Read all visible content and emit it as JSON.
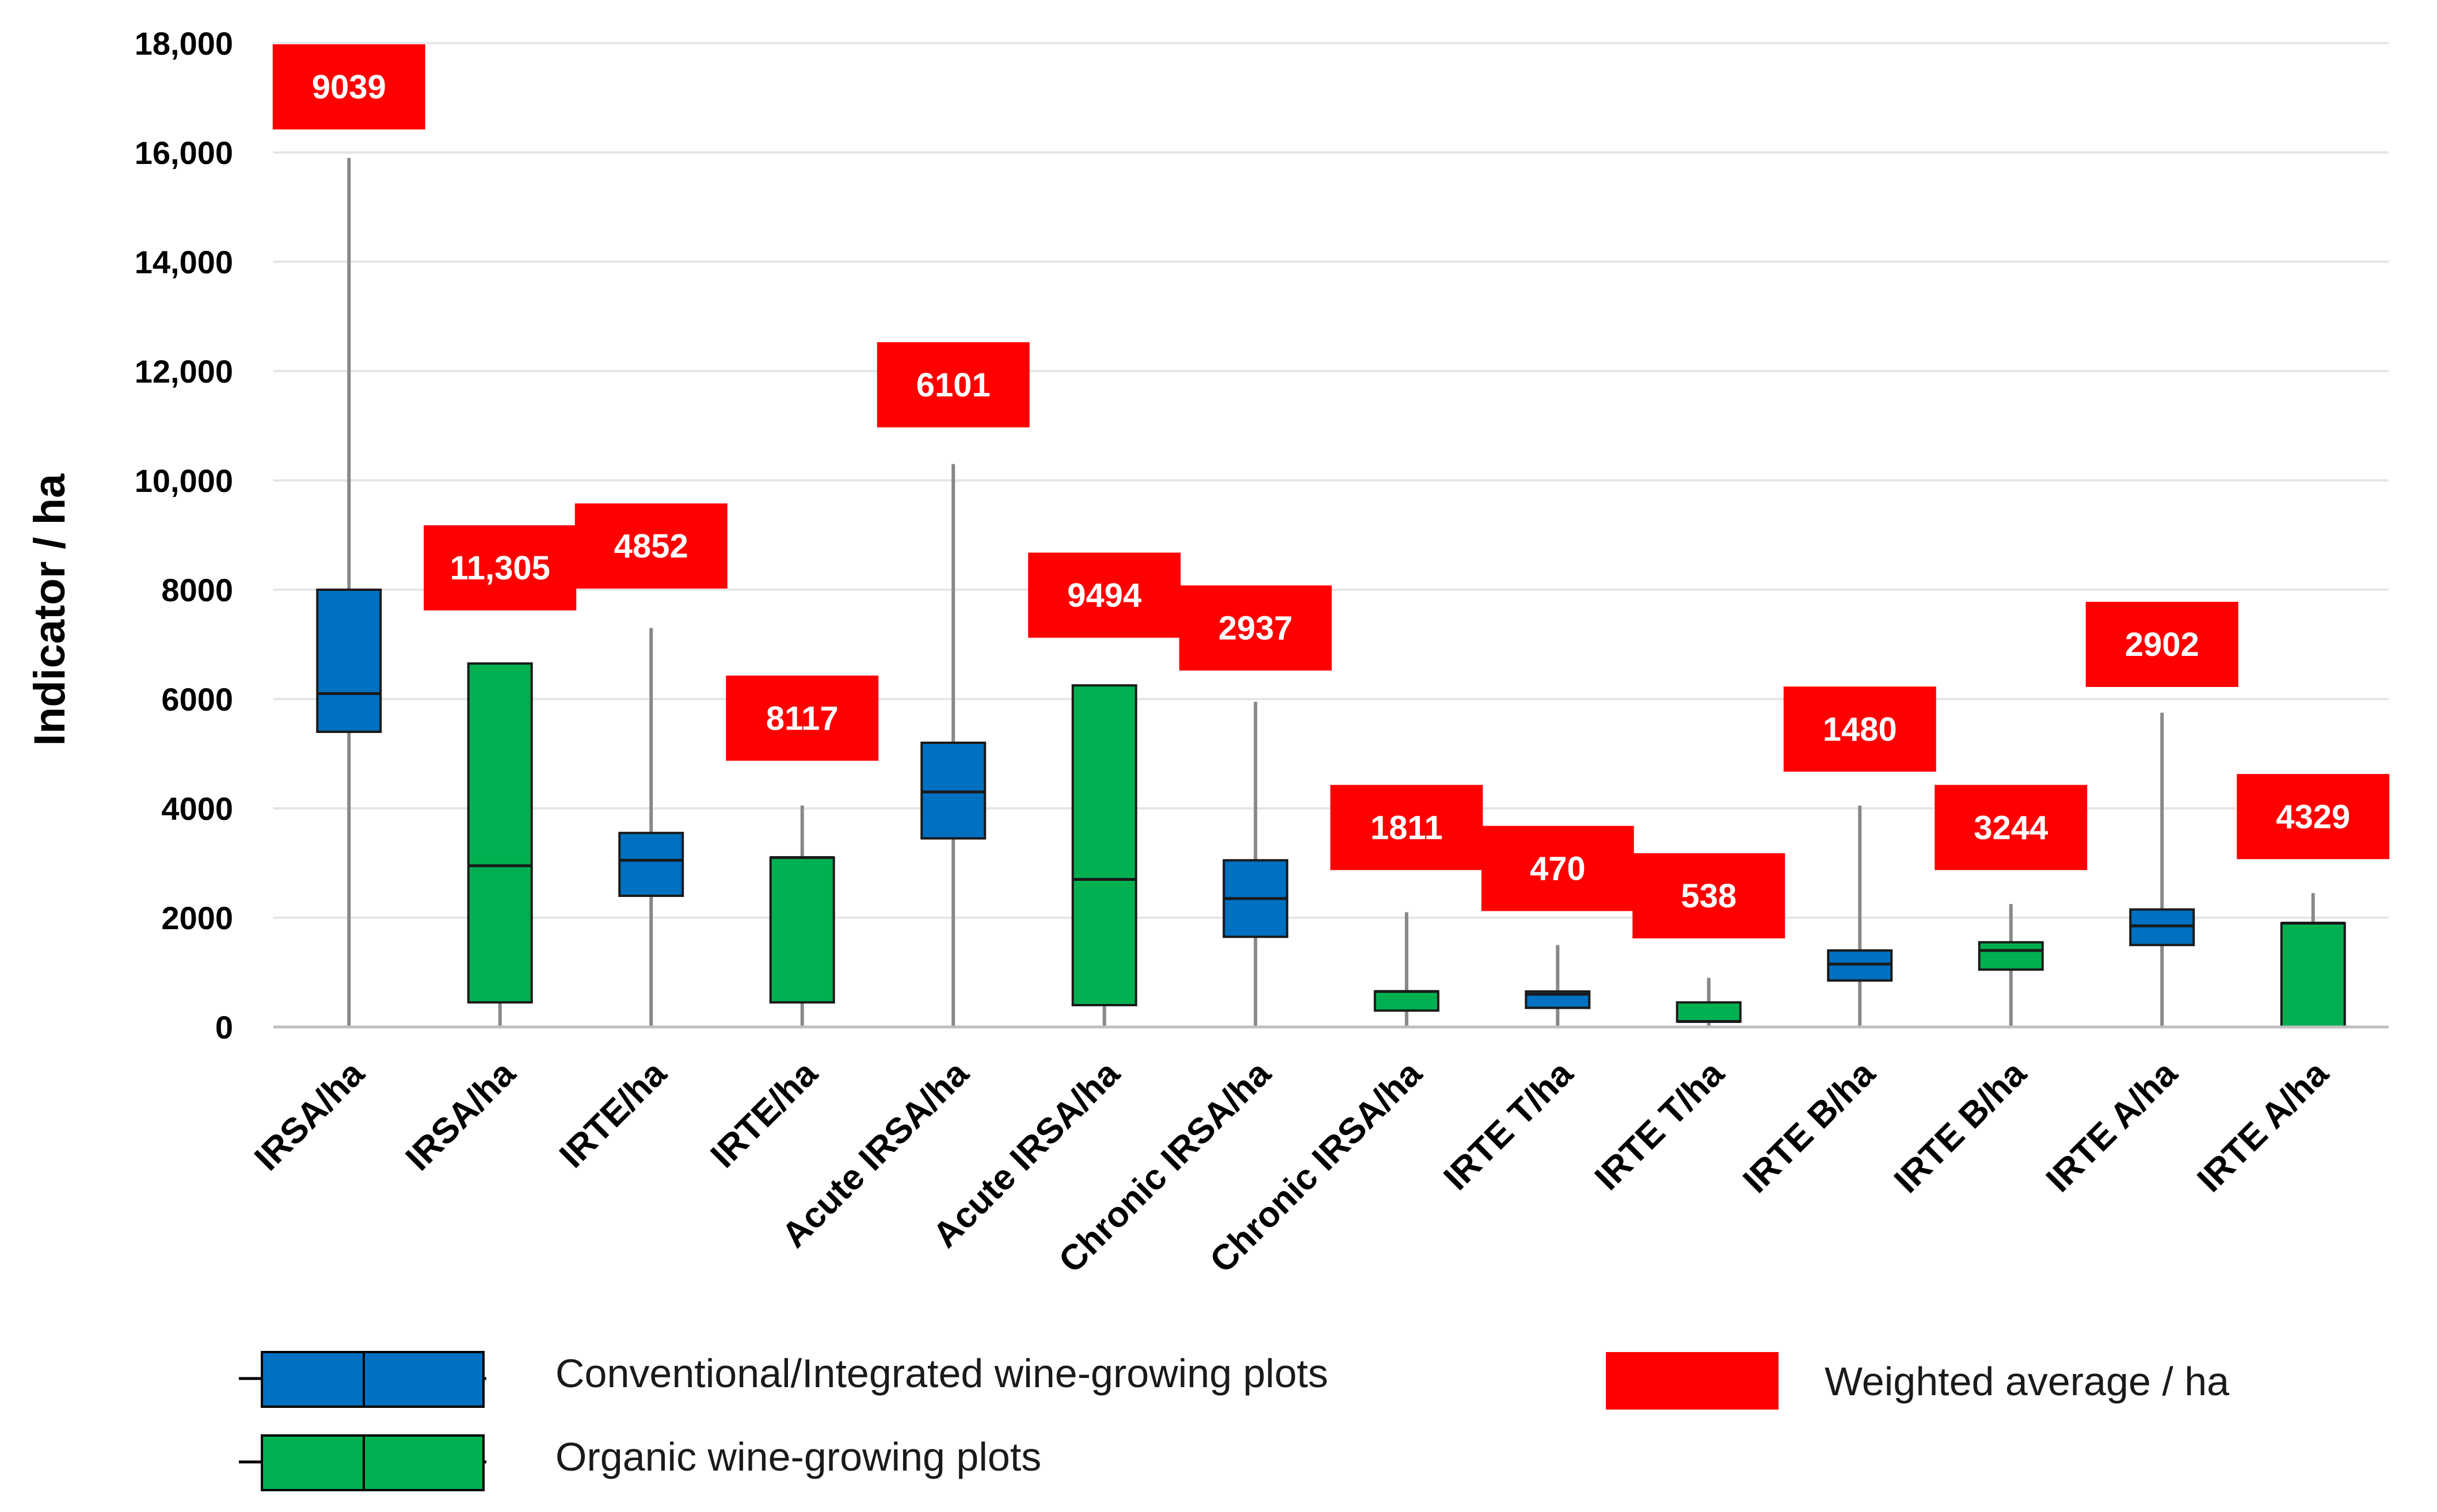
{
  "chart_data": {
    "type": "box",
    "ylabel": "Indicator / ha",
    "ylim": [
      0,
      18000
    ],
    "y_ticks": [
      "0",
      "2000",
      "4000",
      "6000",
      "8000",
      "10,000",
      "12,000",
      "14,000",
      "16,000",
      "18,000"
    ],
    "grid": true,
    "colors": {
      "conventional": "#0070C0",
      "organic": "#00B050",
      "average": "#FF0000",
      "whisker": "#888888",
      "grid": "#E6E6E6"
    },
    "categories": [
      "IRSA/ha",
      "IRSA/ha",
      "IRTE/ha",
      "IRTE/ha",
      "Acute IRSA/ha",
      "Acute IRSA/ha",
      "Chronic IRSA/ha",
      "Chronic IRSA/ha",
      "IRTE T/ha",
      "IRTE T/ha",
      "IRTE B/ha",
      "IRTE B/ha",
      "IRTE A/ha",
      "IRTE A/ha"
    ],
    "boxes": [
      {
        "label": "IRSA/ha",
        "group": "conventional",
        "min": 0,
        "q1": 5400,
        "median": 6100,
        "q3": 8000,
        "max": 15900,
        "avg_label": "9039",
        "avg_y": 17200
      },
      {
        "label": "IRSA/ha",
        "group": "organic",
        "min": 0,
        "q1": 450,
        "median": 2950,
        "q3": 6650,
        "max": 6650,
        "avg_label": "11,305",
        "avg_y": 8400
      },
      {
        "label": "IRTE/ha",
        "group": "conventional",
        "min": 0,
        "q1": 2400,
        "median": 3050,
        "q3": 3550,
        "max": 7300,
        "avg_label": "4852",
        "avg_y": 8800
      },
      {
        "label": "IRTE/ha",
        "group": "organic",
        "min": 0,
        "q1": 450,
        "median": 3100,
        "q3": 3100,
        "max": 4050,
        "avg_label": "8117",
        "avg_y": 5650
      },
      {
        "label": "Acute IRSA/ha",
        "group": "conventional",
        "min": 0,
        "q1": 3450,
        "median": 4300,
        "q3": 5200,
        "max": 10300,
        "avg_label": "6101",
        "avg_y": 11750
      },
      {
        "label": "Acute IRSA/ha",
        "group": "organic",
        "min": 0,
        "q1": 400,
        "median": 2700,
        "q3": 6250,
        "max": 6250,
        "avg_label": "9494",
        "avg_y": 7900
      },
      {
        "label": "Chronic IRSA/ha",
        "group": "conventional",
        "min": 0,
        "q1": 1650,
        "median": 2350,
        "q3": 3050,
        "max": 5950,
        "avg_label": "2937",
        "avg_y": 7300
      },
      {
        "label": "Chronic IRSA/ha",
        "group": "organic",
        "min": 0,
        "q1": 300,
        "median": 650,
        "q3": 650,
        "max": 2100,
        "avg_label": "1811",
        "avg_y": 3650
      },
      {
        "label": "IRTE T/ha",
        "group": "conventional",
        "min": 0,
        "q1": 350,
        "median": 600,
        "q3": 650,
        "max": 1500,
        "avg_label": "470",
        "avg_y": 2900
      },
      {
        "label": "IRTE T/ha",
        "group": "organic",
        "min": 0,
        "q1": 100,
        "median": 100,
        "q3": 450,
        "max": 900,
        "avg_label": "538",
        "avg_y": 2400
      },
      {
        "label": "IRTE B/ha",
        "group": "conventional",
        "min": 0,
        "q1": 850,
        "median": 1150,
        "q3": 1400,
        "max": 4050,
        "avg_label": "1480",
        "avg_y": 5450
      },
      {
        "label": "IRTE B/ha",
        "group": "organic",
        "min": 0,
        "q1": 1050,
        "median": 1400,
        "q3": 1550,
        "max": 2250,
        "avg_label": "3244",
        "avg_y": 3650
      },
      {
        "label": "IRTE A/ha",
        "group": "conventional",
        "min": 0,
        "q1": 1500,
        "median": 1850,
        "q3": 2150,
        "max": 5750,
        "avg_label": "2902",
        "avg_y": 7000
      },
      {
        "label": "IRTE A/ha",
        "group": "organic",
        "min": 0,
        "q1": 0,
        "median": 1900,
        "q3": 1900,
        "max": 2450,
        "avg_label": "4329",
        "avg_y": 3850
      }
    ],
    "legend": {
      "conventional": "Conventional/Integrated wine-growing plots",
      "organic": "Organic wine-growing plots",
      "average": "Weighted average / ha"
    }
  }
}
